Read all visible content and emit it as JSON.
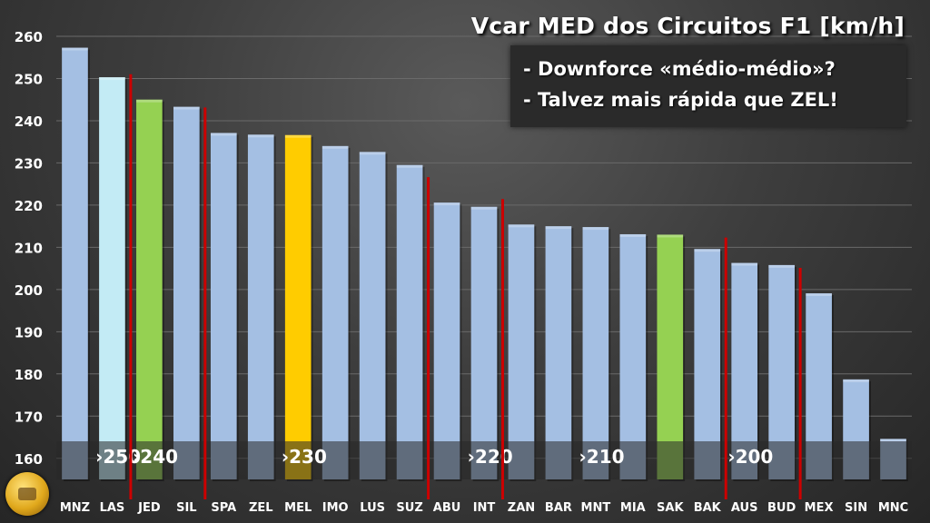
{
  "chart_data": {
    "type": "bar",
    "title": "Vcar MED dos Circuitos F1 [km/h]",
    "xlabel": "",
    "ylabel": "",
    "ylim": [
      155,
      260
    ],
    "yticks": [
      160,
      170,
      180,
      190,
      200,
      210,
      220,
      230,
      240,
      250,
      260
    ],
    "grid": true,
    "categories": [
      "MNZ",
      "LAS",
      "JED",
      "SIL",
      "SPA",
      "ZEL",
      "MEL",
      "IMO",
      "LUS",
      "SUZ",
      "ABU",
      "INT",
      "ZAN",
      "BAR",
      "MNT",
      "MIA",
      "SAK",
      "BAK",
      "AUS",
      "BUD",
      "MEX",
      "SIN",
      "MNC"
    ],
    "values": [
      257.3,
      250.3,
      245.0,
      243.3,
      237.1,
      236.7,
      236.6,
      234.0,
      232.6,
      229.5,
      220.6,
      219.6,
      215.4,
      215.0,
      214.8,
      213.1,
      213.0,
      209.6,
      206.3,
      205.8,
      199.1,
      178.7,
      164.6
    ],
    "bar_colors": {
      "default": "#a4bfe3",
      "LAS": "#c3ebf5",
      "JED": "#95d152",
      "MEL": "#ffcc00",
      "SAK": "#95d152"
    },
    "separator_color": "#cc0000",
    "separators_after": [
      "LAS",
      "SIL",
      "SUZ",
      "INT",
      "BAK",
      "BUD"
    ],
    "band_labels": [
      {
        "label": "›250",
        "at": "LAS"
      },
      {
        "label": "›240",
        "at": "JED"
      },
      {
        "label": "›230",
        "at": "MEL"
      },
      {
        "label": "›220",
        "at": "INT"
      },
      {
        "label": "›210",
        "at": "MNT"
      },
      {
        "label": "›200",
        "at": "AUS"
      }
    ],
    "annotations": [
      "- Downforce «médio-médio»?",
      "- Talvez mais rápida que ZEL!"
    ]
  }
}
